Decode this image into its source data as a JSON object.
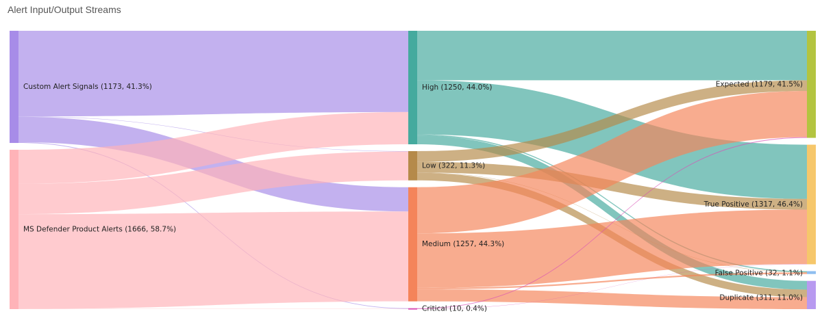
{
  "header": {
    "title": "Alert Input/Output Streams"
  },
  "chart_data": {
    "type": "sankey",
    "title": "Alert Input/Output Streams",
    "columns": [
      [
        "custom",
        "defender"
      ],
      [
        "high",
        "low",
        "medium",
        "critical"
      ],
      [
        "expected",
        "truepos",
        "falsepos",
        "duplicate"
      ]
    ],
    "nodes": {
      "custom": {
        "label": "Custom Alert Signals (1173, 41.3%)",
        "value": 1173,
        "color": "#a78ce8"
      },
      "defender": {
        "label": "MS Defender Product Alerts (1666, 58.7%)",
        "value": 1666,
        "color": "#ffb3b8"
      },
      "high": {
        "label": "High (1250, 44.0%)",
        "value": 1250,
        "color": "#45aa9e"
      },
      "low": {
        "label": "Low (322, 11.3%)",
        "value": 322,
        "color": "#b58a4a"
      },
      "medium": {
        "label": "Medium (1257, 44.3%)",
        "value": 1257,
        "color": "#f4845a"
      },
      "critical": {
        "label": "Critical (10, 0.4%)",
        "value": 10,
        "color": "#d94fb5"
      },
      "expected": {
        "label": "Expected (1179, 41.5%)",
        "value": 1179,
        "color": "#b3c440"
      },
      "truepos": {
        "label": "True Positive (1317, 46.4%)",
        "value": 1317,
        "color": "#f6c76b"
      },
      "falsepos": {
        "label": "False Positive (32, 1.1%)",
        "value": 32,
        "color": "#8fbef0"
      },
      "duplicate": {
        "label": "Duplicate (311, 11.0%)",
        "value": 311,
        "color": "#b89af0"
      }
    },
    "links": [
      {
        "source": "custom",
        "target": "high",
        "value": 895
      },
      {
        "source": "custom",
        "target": "low",
        "value": 4
      },
      {
        "source": "custom",
        "target": "medium",
        "value": 267
      },
      {
        "source": "custom",
        "target": "critical",
        "value": 7
      },
      {
        "source": "defender",
        "target": "high",
        "value": 355
      },
      {
        "source": "defender",
        "target": "low",
        "value": 318
      },
      {
        "source": "defender",
        "target": "medium",
        "value": 990
      },
      {
        "source": "defender",
        "target": "critical",
        "value": 3
      },
      {
        "source": "high",
        "target": "expected",
        "value": 545
      },
      {
        "source": "high",
        "target": "truepos",
        "value": 597
      },
      {
        "source": "high",
        "target": "falsepos",
        "value": 12
      },
      {
        "source": "high",
        "target": "duplicate",
        "value": 96
      },
      {
        "source": "low",
        "target": "expected",
        "value": 118
      },
      {
        "source": "low",
        "target": "truepos",
        "value": 118
      },
      {
        "source": "low",
        "target": "falsepos",
        "value": 3
      },
      {
        "source": "low",
        "target": "duplicate",
        "value": 83
      },
      {
        "source": "medium",
        "target": "expected",
        "value": 508
      },
      {
        "source": "medium",
        "target": "truepos",
        "value": 600
      },
      {
        "source": "medium",
        "target": "falsepos",
        "value": 17
      },
      {
        "source": "medium",
        "target": "duplicate",
        "value": 132
      },
      {
        "source": "critical",
        "target": "expected",
        "value": 8
      },
      {
        "source": "critical",
        "target": "truepos",
        "value": 2
      }
    ]
  }
}
